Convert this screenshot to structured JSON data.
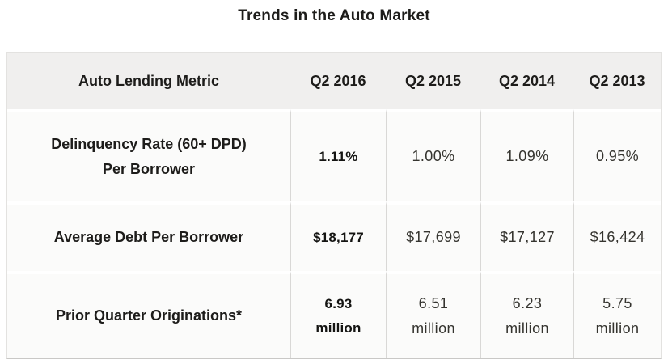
{
  "title": "Trends in the Auto Market",
  "table": {
    "header": [
      "Auto Lending Metric",
      "Q2 2016",
      "Q2 2015",
      "Q2 2014",
      "Q2 2013"
    ],
    "rows": [
      {
        "metric": "Delinquency Rate (60+ DPD)\nPer Borrower",
        "values": [
          "1.11%",
          "1.00%",
          "1.09%",
          "0.95%"
        ]
      },
      {
        "metric": "Average Debt Per Borrower",
        "values": [
          "$18,177",
          "$17,699",
          "$17,127",
          "$16,424"
        ]
      },
      {
        "metric": "Prior Quarter Originations*",
        "values": [
          "6.93\nmillion",
          "6.51\nmillion",
          "6.23\nmillion",
          "5.75\nmillion"
        ]
      }
    ]
  },
  "chart_data": {
    "type": "table",
    "title": "Trends in the Auto Market",
    "columns": [
      "Auto Lending Metric",
      "Q2 2016",
      "Q2 2015",
      "Q2 2014",
      "Q2 2013"
    ],
    "rows": [
      {
        "metric": "Delinquency Rate (60+ DPD) Per Borrower",
        "values": [
          "1.11%",
          "1.00%",
          "1.09%",
          "0.95%"
        ],
        "numeric_percent": [
          1.11,
          1.0,
          1.09,
          0.95
        ]
      },
      {
        "metric": "Average Debt Per Borrower",
        "values": [
          "$18,177",
          "$17,699",
          "$17,127",
          "$16,424"
        ],
        "numeric_dollars": [
          18177,
          17699,
          17127,
          16424
        ]
      },
      {
        "metric": "Prior Quarter Originations*",
        "values": [
          "6.93 million",
          "6.51 million",
          "6.23 million",
          "5.75 million"
        ],
        "numeric_millions": [
          6.93,
          6.51,
          6.23,
          5.75
        ]
      }
    ],
    "notes": "Q2 2016 column emphasized in bold; asterisk footnote marker on Prior Quarter Originations"
  },
  "colors": {
    "header_bg": "#f0efee",
    "cell_bg": "#fbfbfa",
    "row_gap": "#ffffff",
    "column_divider": "#d9d8d6",
    "outer_border": "#e3e2e0",
    "bottom_border": "#c9c8c6",
    "text_bold": "#1d1c1a",
    "text_light": "#35342f"
  }
}
